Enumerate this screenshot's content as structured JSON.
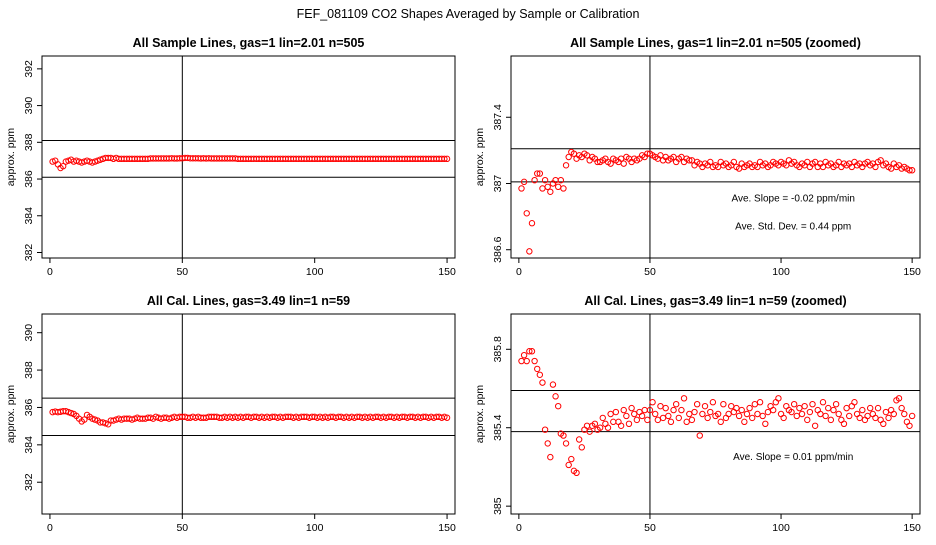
{
  "figure": {
    "title": "FEF_081109  CO2 Shapes Averaged by Sample or Calibration"
  },
  "chart_data": [
    {
      "type": "scatter",
      "title": "All Sample Lines, gas=1 lin=2.01 n=505",
      "ylabel": "approx. ppm",
      "xlim": [
        -3,
        153
      ],
      "ylim": [
        381.7,
        392.7
      ],
      "xticks": [
        0,
        50,
        100,
        150
      ],
      "yticks": [
        382,
        384,
        386,
        388,
        390,
        392
      ],
      "hlines": [
        388.1,
        386.1
      ],
      "vline": 50,
      "annotations": [],
      "color": "#ff0000",
      "x": [
        1,
        2,
        3,
        4,
        5,
        6,
        7,
        8,
        9,
        10,
        11,
        12,
        13,
        14,
        15,
        16,
        17,
        18,
        19,
        20,
        21,
        22,
        23,
        24,
        25,
        26,
        27,
        28,
        29,
        30,
        31,
        32,
        33,
        34,
        35,
        36,
        37,
        38,
        39,
        40,
        41,
        42,
        43,
        44,
        45,
        46,
        47,
        48,
        49,
        50,
        51,
        52,
        53,
        54,
        55,
        56,
        57,
        58,
        59,
        60,
        61,
        62,
        63,
        64,
        65,
        66,
        67,
        68,
        69,
        70,
        71,
        72,
        73,
        74,
        75,
        76,
        77,
        78,
        79,
        80,
        81,
        82,
        83,
        84,
        85,
        86,
        87,
        88,
        89,
        90,
        91,
        92,
        93,
        94,
        95,
        96,
        97,
        98,
        99,
        100,
        101,
        102,
        103,
        104,
        105,
        106,
        107,
        108,
        109,
        110,
        111,
        112,
        113,
        114,
        115,
        116,
        117,
        118,
        119,
        120,
        121,
        122,
        123,
        124,
        125,
        126,
        127,
        128,
        129,
        130,
        131,
        132,
        133,
        134,
        135,
        136,
        137,
        138,
        139,
        140,
        141,
        142,
        143,
        144,
        145,
        146,
        147,
        148,
        149,
        150
      ],
      "y": [
        386.95,
        387.0,
        386.8,
        386.6,
        386.7,
        386.95,
        387.0,
        387.05,
        386.95,
        387.0,
        386.95,
        386.9,
        386.95,
        387.0,
        386.95,
        386.9,
        386.95,
        387.0,
        387.05,
        387.1,
        387.15,
        387.15,
        387.15,
        387.1,
        387.15,
        387.1,
        387.1,
        387.1,
        387.1,
        387.1,
        387.1,
        387.1,
        387.1,
        387.1,
        387.1,
        387.1,
        387.1,
        387.12,
        387.12,
        387.12,
        387.12,
        387.12,
        387.12,
        387.12,
        387.12,
        387.13,
        387.12,
        387.12,
        387.13,
        387.13,
        387.15,
        387.15,
        387.13,
        387.13,
        387.13,
        387.13,
        387.12,
        387.13,
        387.12,
        387.13,
        387.12,
        387.12,
        387.12,
        387.12,
        387.12,
        387.12,
        387.12,
        387.12,
        387.12,
        387.12,
        387.1,
        387.1,
        387.1,
        387.1,
        387.1,
        387.1,
        387.1,
        387.1,
        387.1,
        387.1,
        387.1,
        387.1,
        387.1,
        387.1,
        387.1,
        387.1,
        387.1,
        387.1,
        387.1,
        387.1,
        387.1,
        387.1,
        387.1,
        387.1,
        387.1,
        387.1,
        387.1,
        387.1,
        387.1,
        387.1,
        387.1,
        387.1,
        387.1,
        387.1,
        387.1,
        387.1,
        387.1,
        387.1,
        387.1,
        387.1,
        387.1,
        387.1,
        387.1,
        387.1,
        387.1,
        387.1,
        387.1,
        387.1,
        387.1,
        387.1,
        387.1,
        387.1,
        387.1,
        387.1,
        387.1,
        387.1,
        387.1,
        387.1,
        387.1,
        387.1,
        387.1,
        387.1,
        387.1,
        387.1,
        387.1,
        387.1,
        387.1,
        387.1,
        387.1,
        387.1,
        387.1,
        387.1,
        387.1,
        387.1,
        387.1,
        387.1,
        387.1,
        387.1,
        387.1,
        387.1
      ]
    },
    {
      "type": "scatter",
      "title": "All Sample Lines, gas=1 lin=2.01 n=505 (zoomed)",
      "ylabel": "approx. ppm",
      "xlim": [
        -3,
        153
      ],
      "ylim": [
        386.55,
        387.77
      ],
      "xticks": [
        0,
        50,
        100,
        150
      ],
      "yticks": [
        386.6,
        387.0,
        387.4
      ],
      "hlines": [
        387.21,
        387.01
      ],
      "vline": 50,
      "annotations": [
        "Ave. Slope =  -0.02  ppm/min",
        "Ave. Std. Dev. =  0.44  ppm"
      ],
      "color": "#ff0000",
      "x": [
        1,
        2,
        3,
        4,
        5,
        6,
        7,
        8,
        9,
        10,
        11,
        12,
        13,
        14,
        15,
        16,
        17,
        18,
        19,
        20,
        21,
        22,
        23,
        24,
        25,
        26,
        27,
        28,
        29,
        30,
        31,
        32,
        33,
        34,
        35,
        36,
        37,
        38,
        39,
        40,
        41,
        42,
        43,
        44,
        45,
        46,
        47,
        48,
        49,
        50,
        51,
        52,
        53,
        54,
        55,
        56,
        57,
        58,
        59,
        60,
        61,
        62,
        63,
        64,
        65,
        66,
        67,
        68,
        69,
        70,
        71,
        72,
        73,
        74,
        75,
        76,
        77,
        78,
        79,
        80,
        81,
        82,
        83,
        84,
        85,
        86,
        87,
        88,
        89,
        90,
        91,
        92,
        93,
        94,
        95,
        96,
        97,
        98,
        99,
        100,
        101,
        102,
        103,
        104,
        105,
        106,
        107,
        108,
        109,
        110,
        111,
        112,
        113,
        114,
        115,
        116,
        117,
        118,
        119,
        120,
        121,
        122,
        123,
        124,
        125,
        126,
        127,
        128,
        129,
        130,
        131,
        132,
        133,
        134,
        135,
        136,
        137,
        138,
        139,
        140,
        141,
        142,
        143,
        144,
        145,
        146,
        147,
        148,
        149,
        150
      ],
      "y": [
        386.97,
        387.01,
        386.82,
        386.59,
        386.76,
        387.02,
        387.06,
        387.06,
        386.97,
        387.02,
        386.98,
        386.95,
        387.0,
        387.02,
        386.98,
        387.02,
        386.97,
        387.11,
        387.16,
        387.19,
        387.18,
        387.15,
        387.17,
        387.16,
        387.18,
        387.17,
        387.14,
        387.16,
        387.15,
        387.13,
        387.13,
        387.14,
        387.15,
        387.13,
        387.12,
        387.15,
        387.14,
        387.13,
        387.15,
        387.12,
        387.16,
        387.15,
        387.13,
        387.15,
        387.14,
        387.15,
        387.17,
        387.16,
        387.18,
        387.18,
        387.17,
        387.16,
        387.15,
        387.17,
        387.14,
        387.16,
        387.14,
        387.15,
        387.16,
        387.13,
        387.15,
        387.16,
        387.13,
        387.15,
        387.14,
        387.14,
        387.11,
        387.13,
        387.12,
        387.1,
        387.12,
        387.11,
        387.13,
        387.1,
        387.11,
        387.1,
        387.13,
        387.11,
        387.12,
        387.1,
        387.11,
        387.13,
        387.1,
        387.09,
        387.12,
        387.1,
        387.11,
        387.12,
        387.1,
        387.11,
        387.1,
        387.13,
        387.11,
        387.12,
        387.1,
        387.11,
        387.13,
        387.12,
        387.11,
        387.13,
        387.12,
        387.11,
        387.14,
        387.12,
        387.13,
        387.11,
        387.1,
        387.12,
        387.11,
        387.13,
        387.1,
        387.12,
        387.13,
        387.1,
        387.12,
        387.1,
        387.13,
        387.11,
        387.12,
        387.1,
        387.11,
        387.13,
        387.1,
        387.12,
        387.11,
        387.12,
        387.1,
        387.13,
        387.11,
        387.12,
        387.1,
        387.12,
        387.13,
        387.11,
        387.12,
        387.1,
        387.13,
        387.14,
        387.11,
        387.12,
        387.1,
        387.09,
        387.12,
        387.1,
        387.11,
        387.09,
        387.1,
        387.09,
        387.08,
        387.08
      ]
    },
    {
      "type": "scatter",
      "title": "All Cal. Lines, gas=3.49 lin=1 n=59",
      "ylabel": "approx. ppm",
      "xlim": [
        -3,
        153
      ],
      "ylim": [
        380.3,
        391.0
      ],
      "xticks": [
        0,
        50,
        100,
        150
      ],
      "yticks": [
        382,
        384,
        386,
        388,
        390
      ],
      "hlines": [
        386.5,
        384.5
      ],
      "vline": 50,
      "annotations": [],
      "color": "#ff0000",
      "x": [
        1,
        2,
        3,
        4,
        5,
        6,
        7,
        8,
        9,
        10,
        11,
        12,
        13,
        14,
        15,
        16,
        17,
        18,
        19,
        20,
        21,
        22,
        23,
        24,
        25,
        26,
        27,
        28,
        29,
        30,
        31,
        32,
        33,
        34,
        35,
        36,
        37,
        38,
        39,
        40,
        41,
        42,
        43,
        44,
        45,
        46,
        47,
        48,
        49,
        50,
        51,
        52,
        53,
        54,
        55,
        56,
        57,
        58,
        59,
        60,
        61,
        62,
        63,
        64,
        65,
        66,
        67,
        68,
        69,
        70,
        71,
        72,
        73,
        74,
        75,
        76,
        77,
        78,
        79,
        80,
        81,
        82,
        83,
        84,
        85,
        86,
        87,
        88,
        89,
        90,
        91,
        92,
        93,
        94,
        95,
        96,
        97,
        98,
        99,
        100,
        101,
        102,
        103,
        104,
        105,
        106,
        107,
        108,
        109,
        110,
        111,
        112,
        113,
        114,
        115,
        116,
        117,
        118,
        119,
        120,
        121,
        122,
        123,
        124,
        125,
        126,
        127,
        128,
        129,
        130,
        131,
        132,
        133,
        134,
        135,
        136,
        137,
        138,
        139,
        140,
        141,
        142,
        143,
        144,
        145,
        146,
        147,
        148,
        149,
        150
      ],
      "y": [
        385.75,
        385.78,
        385.75,
        385.77,
        385.8,
        385.8,
        385.75,
        385.7,
        385.65,
        385.55,
        385.4,
        385.25,
        385.35,
        385.6,
        385.5,
        385.4,
        385.35,
        385.3,
        385.2,
        385.2,
        385.15,
        385.1,
        385.3,
        385.3,
        385.35,
        385.4,
        385.35,
        385.4,
        385.4,
        385.4,
        385.35,
        385.4,
        385.45,
        385.4,
        385.4,
        385.4,
        385.45,
        385.45,
        385.4,
        385.5,
        385.45,
        385.4,
        385.45,
        385.45,
        385.4,
        385.45,
        385.5,
        385.45,
        385.5,
        385.5,
        385.5,
        385.45,
        385.45,
        385.5,
        385.45,
        385.5,
        385.45,
        385.45,
        385.45,
        385.5,
        385.5,
        385.5,
        385.5,
        385.45,
        385.45,
        385.5,
        385.45,
        385.5,
        385.45,
        385.5,
        385.45,
        385.5,
        385.45,
        385.5,
        385.5,
        385.45,
        385.5,
        385.5,
        385.45,
        385.5,
        385.45,
        385.5,
        385.45,
        385.5,
        385.5,
        385.45,
        385.5,
        385.45,
        385.5,
        385.5,
        385.5,
        385.45,
        385.5,
        385.45,
        385.5,
        385.5,
        385.5,
        385.45,
        385.5,
        385.5,
        385.45,
        385.5,
        385.45,
        385.5,
        385.45,
        385.5,
        385.5,
        385.45,
        385.5,
        385.5,
        385.45,
        385.5,
        385.45,
        385.5,
        385.45,
        385.5,
        385.5,
        385.45,
        385.5,
        385.45,
        385.5,
        385.45,
        385.5,
        385.5,
        385.45,
        385.5,
        385.45,
        385.5,
        385.5,
        385.45,
        385.5,
        385.45,
        385.5,
        385.5,
        385.45,
        385.5,
        385.5,
        385.45,
        385.5,
        385.45,
        385.5,
        385.5,
        385.45,
        385.5,
        385.45,
        385.5,
        385.5,
        385.45,
        385.5,
        385.45
      ]
    },
    {
      "type": "scatter",
      "title": "All Cal. Lines, gas=3.49 lin=1 n=59 (zoomed)",
      "ylabel": "approx. ppm",
      "xlim": [
        -3,
        153
      ],
      "ylim": [
        384.96,
        385.98
      ],
      "xticks": [
        0,
        50,
        100,
        150
      ],
      "yticks": [
        385.0,
        385.4,
        385.8
      ],
      "hlines": [
        385.59,
        385.38
      ],
      "vline": 50,
      "annotations": [
        "Ave. Slope =  0.01  ppm/min"
      ],
      "color": "#ff0000",
      "x": [
        1,
        2,
        3,
        4,
        5,
        6,
        7,
        8,
        9,
        10,
        11,
        12,
        13,
        14,
        15,
        16,
        17,
        18,
        19,
        20,
        21,
        22,
        23,
        24,
        25,
        26,
        27,
        28,
        29,
        30,
        31,
        32,
        33,
        34,
        35,
        36,
        37,
        38,
        39,
        40,
        41,
        42,
        43,
        44,
        45,
        46,
        47,
        48,
        49,
        50,
        51,
        52,
        53,
        54,
        55,
        56,
        57,
        58,
        59,
        60,
        61,
        62,
        63,
        64,
        65,
        66,
        67,
        68,
        69,
        70,
        71,
        72,
        73,
        74,
        75,
        76,
        77,
        78,
        79,
        80,
        81,
        82,
        83,
        84,
        85,
        86,
        87,
        88,
        89,
        90,
        91,
        92,
        93,
        94,
        95,
        96,
        97,
        98,
        99,
        100,
        101,
        102,
        103,
        104,
        105,
        106,
        107,
        108,
        109,
        110,
        111,
        112,
        113,
        114,
        115,
        116,
        117,
        118,
        119,
        120,
        121,
        122,
        123,
        124,
        125,
        126,
        127,
        128,
        129,
        130,
        131,
        132,
        133,
        134,
        135,
        136,
        137,
        138,
        139,
        140,
        141,
        142,
        143,
        144,
        145,
        146,
        147,
        148,
        149,
        150
      ],
      "y": [
        385.74,
        385.77,
        385.74,
        385.79,
        385.79,
        385.74,
        385.7,
        385.67,
        385.63,
        385.39,
        385.32,
        385.25,
        385.62,
        385.56,
        385.51,
        385.37,
        385.36,
        385.32,
        385.21,
        385.24,
        385.18,
        385.17,
        385.34,
        385.3,
        385.39,
        385.41,
        385.38,
        385.41,
        385.42,
        385.39,
        385.4,
        385.45,
        385.42,
        385.4,
        385.47,
        385.43,
        385.48,
        385.43,
        385.41,
        385.49,
        385.46,
        385.42,
        385.5,
        385.47,
        385.44,
        385.48,
        385.46,
        385.49,
        385.44,
        385.49,
        385.53,
        385.47,
        385.44,
        385.51,
        385.45,
        385.5,
        385.46,
        385.43,
        385.49,
        385.52,
        385.45,
        385.49,
        385.55,
        385.43,
        385.47,
        385.44,
        385.48,
        385.52,
        385.36,
        385.47,
        385.51,
        385.45,
        385.48,
        385.53,
        385.46,
        385.47,
        385.43,
        385.52,
        385.45,
        385.47,
        385.51,
        385.48,
        385.5,
        385.46,
        385.49,
        385.43,
        385.47,
        385.5,
        385.45,
        385.52,
        385.47,
        385.53,
        385.46,
        385.42,
        385.48,
        385.51,
        385.49,
        385.53,
        385.55,
        385.47,
        385.45,
        385.51,
        385.49,
        385.48,
        385.52,
        385.46,
        385.5,
        385.47,
        385.51,
        385.44,
        385.48,
        385.52,
        385.41,
        385.49,
        385.47,
        385.53,
        385.46,
        385.5,
        385.44,
        385.49,
        385.52,
        385.47,
        385.44,
        385.42,
        385.5,
        385.46,
        385.51,
        385.53,
        385.47,
        385.45,
        385.49,
        385.44,
        385.46,
        385.5,
        385.47,
        385.45,
        385.5,
        385.44,
        385.42,
        385.48,
        385.45,
        385.49,
        385.47,
        385.54,
        385.55,
        385.5,
        385.47,
        385.43,
        385.41,
        385.46
      ]
    }
  ]
}
